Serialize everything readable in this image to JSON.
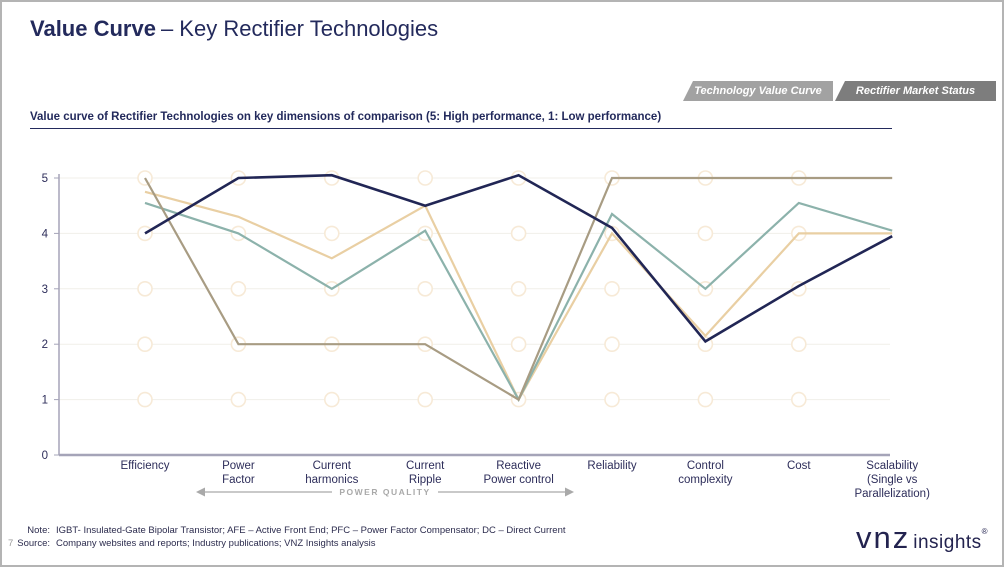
{
  "page": {
    "title_bold": "Value Curve",
    "title_rest": "– Key Rectifier Technologies",
    "page_number": "7"
  },
  "tabs": [
    {
      "label": "Technology Value Curve",
      "color": "#a2a2a2"
    },
    {
      "label": "Rectifier Market Status",
      "color": "#7d7d7d"
    }
  ],
  "subtitle": "Value curve of Rectifier Technologies on key dimensions of comparison (5: High performance, 1: Low performance)",
  "chart_data": {
    "type": "line",
    "title": "Value Curve – Key Rectifier Technologies",
    "categories": [
      "Efficiency",
      "Power\nFactor",
      "Current\nharmonics",
      "Current\nRipple",
      "Reactive\nPower control",
      "Reliability",
      "Control\ncomplexity",
      "Cost",
      "Scalability\n(Single vs\nParallelization)"
    ],
    "series": [
      {
        "name": "series-navy",
        "color": "#212655",
        "width": 2.6,
        "z": 4,
        "values": [
          4.0,
          5.0,
          5.05,
          4.5,
          5.05,
          4.1,
          2.05,
          3.05,
          3.95
        ]
      },
      {
        "name": "series-teal",
        "color": "#8cb2ab",
        "width": 2.2,
        "z": 2,
        "values": [
          4.55,
          4.0,
          3.0,
          4.05,
          1.0,
          4.35,
          3.0,
          4.55,
          4.05
        ]
      },
      {
        "name": "series-beige",
        "color": "#e9cfa3",
        "width": 2.2,
        "z": 1,
        "values": [
          4.75,
          4.3,
          3.55,
          4.5,
          1.0,
          4.0,
          2.15,
          4.0,
          4.0
        ]
      },
      {
        "name": "series-khaki",
        "color": "#a89c83",
        "width": 2.2,
        "z": 3,
        "values": [
          5.0,
          2.0,
          2.0,
          2.0,
          1.0,
          5.0,
          5.0,
          5.0,
          5.0
        ]
      }
    ],
    "ylim": [
      0,
      5
    ],
    "yticks": [
      "0",
      "1",
      "2",
      "3",
      "4",
      "5"
    ],
    "grid": "faint horizontal lines at 1-5; hollow circle markers at every category/integer intersection",
    "legend": "none",
    "marker_grid": {
      "stroke": "#f7ead7",
      "fill": "#ffffff",
      "values": [
        1,
        2,
        3,
        4,
        5
      ]
    },
    "annotation": {
      "label": "POWER QUALITY",
      "from_category": "Power Factor",
      "to_category": "Reactive Power control",
      "color": "#a9a9a9"
    },
    "axis_color": "#a5a4b8",
    "label_color": "#2d2d5a"
  },
  "footer": {
    "note_label": "Note:",
    "note": "IGBT-  Insulated-Gate Bipolar Transistor; AFE – Active Front End; PFC – Power Factor Compensator; DC – Direct Current",
    "source_label": "Source:",
    "source": "Company websites and reports; Industry publications; VNZ Insights analysis"
  },
  "logo": {
    "brand": "vnz",
    "suffix": "insights",
    "mark": "®"
  }
}
